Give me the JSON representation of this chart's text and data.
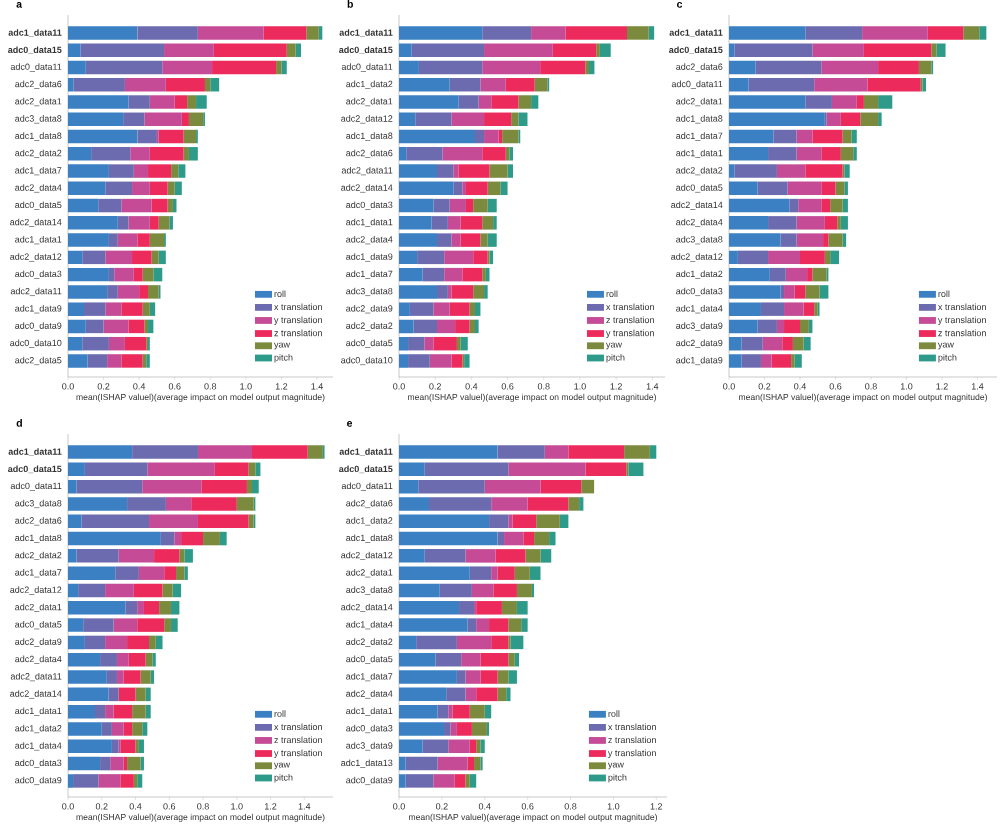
{
  "chart_data": [
    {
      "type": "bar",
      "orientation": "horizontal",
      "stacked": true,
      "title": "a",
      "xlabel": "mean(ISHAP valuel)(average impact on model output magnitude)",
      "legend": "bottom right",
      "xlim": [
        0,
        1.49
      ],
      "xticks": [
        {
          "value": 0,
          "label": "0.0"
        },
        {
          "value": 0.2,
          "label": "0.2"
        },
        {
          "value": 0.4,
          "label": "0.4"
        },
        {
          "value": 0.6,
          "label": "0.6"
        },
        {
          "value": 0.8,
          "label": "0.8"
        },
        {
          "value": 1.0,
          "label": "1.0"
        },
        {
          "value": 1.2,
          "label": "1.2"
        },
        {
          "value": 1.4,
          "label": "1.4"
        }
      ],
      "categories": [
        "**adc1_data11**",
        "**adc0_data15**",
        "adc0_data11",
        "adc2_data6",
        "adc2_data1",
        "adc3_data8",
        "adc1_data8",
        "adc2_data2",
        "adc1_data7",
        "adc2_data4",
        "adc0_data5",
        "adc2_data14",
        "adc1_data1",
        "adc2_data12",
        "adc0_data3",
        "adc2_data11",
        "adc1_data9",
        "adc0_data9",
        "adc0_data10",
        "adc2_data5"
      ],
      "series": [
        {
          "name": "roll",
          "color": "#3a80c3",
          "values": [
            0.39,
            0.07,
            0.1,
            0.03,
            0.34,
            0.31,
            0.39,
            0.13,
            0.23,
            0.21,
            0.17,
            0.28,
            0.23,
            0.08,
            0.23,
            0.22,
            0.09,
            0.1,
            0.08,
            0.11
          ]
        },
        {
          "name": "x translation",
          "color": "#6d6bb0",
          "values": [
            0.34,
            0.47,
            0.43,
            0.29,
            0.12,
            0.12,
            0.11,
            0.22,
            0.14,
            0.15,
            0.13,
            0.06,
            0.05,
            0.13,
            0.03,
            0.06,
            0.12,
            0.1,
            0.15,
            0.11
          ]
        },
        {
          "name": "y translation",
          "color": "#c54b96",
          "values": [
            0.37,
            0.28,
            0.28,
            0.23,
            0.14,
            0.21,
            0.01,
            0.11,
            0.08,
            0.1,
            0.17,
            0.12,
            0.11,
            0.15,
            0.11,
            0.12,
            0.09,
            0.14,
            0.09,
            0.08
          ]
        },
        {
          "name": "z translation",
          "color": "#ec2a5b",
          "values": [
            0.24,
            0.41,
            0.36,
            0.22,
            0.07,
            0.04,
            0.14,
            0.19,
            0.13,
            0.1,
            0.09,
            0.05,
            0.07,
            0.11,
            0.05,
            0.05,
            0.12,
            0.09,
            0.12,
            0.12
          ]
        },
        {
          "name": "yaw",
          "color": "#7b8a3c",
          "values": [
            0.07,
            0.05,
            0.03,
            0.03,
            0.05,
            0.08,
            0.07,
            0.03,
            0.04,
            0.04,
            0.03,
            0.06,
            0.08,
            0.04,
            0.06,
            0.06,
            0.04,
            0.02,
            0.01,
            0.02
          ]
        },
        {
          "name": "pitch",
          "color": "#2e9a8a",
          "values": [
            0.02,
            0.03,
            0.03,
            0.05,
            0.06,
            0.01,
            0.01,
            0.05,
            0.04,
            0.04,
            0.02,
            0.02,
            0.01,
            0.04,
            0.05,
            0.01,
            0.03,
            0.03,
            0.01,
            0.02
          ]
        }
      ]
    },
    {
      "type": "bar",
      "orientation": "horizontal",
      "stacked": true,
      "title": "b",
      "xlabel": "mean(ISHAP valuel)(average impact on model output magnitude)",
      "legend": "bottom right",
      "xlim": [
        0,
        1.47
      ],
      "xticks": [
        {
          "value": 0,
          "label": "0.0"
        },
        {
          "value": 0.2,
          "label": "0.2"
        },
        {
          "value": 0.4,
          "label": "0.4"
        },
        {
          "value": 0.6,
          "label": "0.6"
        },
        {
          "value": 0.8,
          "label": "0.8"
        },
        {
          "value": 1.0,
          "label": "1.0"
        },
        {
          "value": 1.2,
          "label": "1.2"
        },
        {
          "value": 1.4,
          "label": "1.4"
        }
      ],
      "categories": [
        "**adc1_data11**",
        "**adc0_data15**",
        "adc0_data11",
        "adc1_data2",
        "adc2_data1",
        "adc2_data12",
        "adc1_data8",
        "adc2_data6",
        "adc2_data11",
        "adc2_data14",
        "adc0_data3",
        "adc1_data1",
        "adc2_data4",
        "adc1_data9",
        "adc1_data7",
        "adc3_data8",
        "adc2_data9",
        "adc2_data2",
        "adc0_data5",
        "adc0_data10"
      ],
      "series": [
        {
          "name": "roll",
          "color": "#3a80c3",
          "values": [
            0.46,
            0.07,
            0.11,
            0.28,
            0.33,
            0.09,
            0.42,
            0.04,
            0.21,
            0.3,
            0.19,
            0.18,
            0.21,
            0.1,
            0.13,
            0.21,
            0.06,
            0.08,
            0.05,
            0.05
          ]
        },
        {
          "name": "x translation",
          "color": "#6d6bb0",
          "values": [
            0.27,
            0.4,
            0.35,
            0.17,
            0.11,
            0.2,
            0.05,
            0.2,
            0.09,
            0.05,
            0.09,
            0.09,
            0.08,
            0.15,
            0.12,
            0.06,
            0.13,
            0.13,
            0.09,
            0.12
          ]
        },
        {
          "name": "z translation",
          "color": "#c54b96",
          "values": [
            0.19,
            0.38,
            0.32,
            0.14,
            0.07,
            0.18,
            0.08,
            0.22,
            0.03,
            0.02,
            0.09,
            0.07,
            0.05,
            0.16,
            0.1,
            0.02,
            0.09,
            0.1,
            0.05,
            0.12
          ]
        },
        {
          "name": "y translation",
          "color": "#ec2a5b",
          "values": [
            0.34,
            0.24,
            0.25,
            0.16,
            0.15,
            0.15,
            0.02,
            0.13,
            0.17,
            0.12,
            0.04,
            0.12,
            0.11,
            0.08,
            0.11,
            0.12,
            0.11,
            0.08,
            0.13,
            0.06
          ]
        },
        {
          "name": "yaw",
          "color": "#7b8a3c",
          "values": [
            0.12,
            0.02,
            0.02,
            0.07,
            0.07,
            0.04,
            0.09,
            0.02,
            0.1,
            0.07,
            0.08,
            0.06,
            0.04,
            0.01,
            0.02,
            0.06,
            0.03,
            0.03,
            0.02,
            0.01
          ]
        },
        {
          "name": "pitch",
          "color": "#2e9a8a",
          "values": [
            0.03,
            0.06,
            0.03,
            0.01,
            0.04,
            0.05,
            0.01,
            0.02,
            0.03,
            0.04,
            0.05,
            0.02,
            0.05,
            0.02,
            0.02,
            0.02,
            0.03,
            0.02,
            0.04,
            0.03
          ]
        }
      ]
    },
    {
      "type": "bar",
      "orientation": "horizontal",
      "stacked": true,
      "title": "c",
      "xlabel": "mean(ISHAP valuel)(average impact on model output magnitude)",
      "legend": "bottom right",
      "xlim": [
        0,
        1.51
      ],
      "xticks": [
        {
          "value": 0,
          "label": "0.0"
        },
        {
          "value": 0.2,
          "label": "0.2"
        },
        {
          "value": 0.4,
          "label": "0.4"
        },
        {
          "value": 0.6,
          "label": "0.6"
        },
        {
          "value": 0.8,
          "label": "0.8"
        },
        {
          "value": 1.0,
          "label": "1.0"
        },
        {
          "value": 1.2,
          "label": "1.2"
        },
        {
          "value": 1.4,
          "label": "1.4"
        }
      ],
      "categories": [
        "**adc1_data11**",
        "**adc0_data15**",
        "adc2_data6",
        "adc0_data11",
        "adc2_data1",
        "adc1_data8",
        "adc1_data7",
        "adc1_data1",
        "adc2_data2",
        "adc0_data5",
        "adc2_data14",
        "adc2_data4",
        "adc3_data8",
        "adc2_data12",
        "adc1_data2",
        "adc0_data3",
        "adc1_data4",
        "adc3_data9",
        "adc2_data9",
        "adc1_data9"
      ],
      "series": [
        {
          "name": "roll",
          "color": "#3a80c3",
          "values": [
            0.43,
            0.03,
            0.15,
            0.11,
            0.43,
            0.54,
            0.25,
            0.22,
            0.03,
            0.16,
            0.34,
            0.22,
            0.29,
            0.05,
            0.23,
            0.29,
            0.18,
            0.16,
            0.07,
            0.07
          ]
        },
        {
          "name": "x translation",
          "color": "#6d6bb0",
          "values": [
            0.32,
            0.44,
            0.37,
            0.37,
            0.15,
            0.01,
            0.13,
            0.16,
            0.24,
            0.17,
            0.05,
            0.16,
            0.09,
            0.17,
            0.09,
            0.02,
            0.13,
            0.11,
            0.12,
            0.11
          ]
        },
        {
          "name": "y translation",
          "color": "#c54b96",
          "values": [
            0.37,
            0.29,
            0.32,
            0.3,
            0.14,
            0.08,
            0.09,
            0.14,
            0.16,
            0.19,
            0.13,
            0.16,
            0.15,
            0.18,
            0.12,
            0.06,
            0.11,
            0.04,
            0.11,
            0.06
          ]
        },
        {
          "name": "z translation",
          "color": "#ec2a5b",
          "values": [
            0.2,
            0.38,
            0.23,
            0.3,
            0.04,
            0.11,
            0.17,
            0.11,
            0.21,
            0.08,
            0.05,
            0.07,
            0.03,
            0.14,
            0.03,
            0.06,
            0.06,
            0.09,
            0.06,
            0.11
          ]
        },
        {
          "name": "yaw",
          "color": "#7b8a3c",
          "values": [
            0.09,
            0.03,
            0.07,
            0.01,
            0.08,
            0.1,
            0.05,
            0.07,
            0.01,
            0.05,
            0.07,
            0.02,
            0.08,
            0.03,
            0.08,
            0.08,
            0.02,
            0.05,
            0.06,
            0.02
          ]
        },
        {
          "name": "pitch",
          "color": "#2e9a8a",
          "values": [
            0.04,
            0.05,
            0.01,
            0.02,
            0.08,
            0.02,
            0.03,
            0.02,
            0.03,
            0.02,
            0.03,
            0.04,
            0.02,
            0.05,
            0.01,
            0.05,
            0.01,
            0.02,
            0.04,
            0.04
          ]
        }
      ]
    },
    {
      "type": "bar",
      "orientation": "horizontal",
      "stacked": true,
      "title": "d",
      "xlabel": "mean(ISHAP valuel)(average impact on model output magnitude)",
      "legend": "bottom right",
      "xlim": [
        0,
        1.57
      ],
      "xticks": [
        {
          "value": 0,
          "label": "0.0"
        },
        {
          "value": 0.2,
          "label": "0.2"
        },
        {
          "value": 0.4,
          "label": "0.4"
        },
        {
          "value": 0.6,
          "label": "0.6"
        },
        {
          "value": 0.8,
          "label": "0.8"
        },
        {
          "value": 1.0,
          "label": "1.0"
        },
        {
          "value": 1.2,
          "label": "1.2"
        },
        {
          "value": 1.4,
          "label": "1.4"
        }
      ],
      "categories": [
        "**adc1_data11**",
        "**adc0_data15**",
        "adc0_data11",
        "adc3_data8",
        "adc2_data6",
        "adc1_data8",
        "adc2_data2",
        "adc1_data7",
        "adc2_data12",
        "adc2_data1",
        "adc0_data5",
        "adc2_data9",
        "adc2_data4",
        "adc2_data11",
        "adc2_data14",
        "adc1_data1",
        "adc1_data2",
        "adc1_data4",
        "adc0_data3",
        "adc0_data9"
      ],
      "series": [
        {
          "name": "roll",
          "color": "#3a80c3",
          "values": [
            0.38,
            0.1,
            0.05,
            0.35,
            0.08,
            0.55,
            0.05,
            0.28,
            0.06,
            0.34,
            0.09,
            0.1,
            0.19,
            0.23,
            0.24,
            0.16,
            0.2,
            0.26,
            0.19,
            0.03
          ]
        },
        {
          "name": "x translation",
          "color": "#6d6bb0",
          "values": [
            0.39,
            0.37,
            0.39,
            0.23,
            0.4,
            0.08,
            0.25,
            0.14,
            0.16,
            0.07,
            0.18,
            0.12,
            0.1,
            0.06,
            0.06,
            0.06,
            0.06,
            0.04,
            0.06,
            0.15
          ]
        },
        {
          "name": "z translation",
          "color": "#c54b96",
          "values": [
            0.32,
            0.4,
            0.35,
            0.15,
            0.29,
            0.04,
            0.21,
            0.15,
            0.17,
            0.04,
            0.14,
            0.13,
            0.07,
            0.04,
            0.0,
            0.05,
            0.07,
            0.01,
            0.08,
            0.13
          ]
        },
        {
          "name": "y translation",
          "color": "#ec2a5b",
          "values": [
            0.33,
            0.2,
            0.27,
            0.27,
            0.3,
            0.13,
            0.15,
            0.07,
            0.17,
            0.09,
            0.16,
            0.13,
            0.1,
            0.1,
            0.1,
            0.11,
            0.05,
            0.09,
            0.02,
            0.08
          ]
        },
        {
          "name": "yaw",
          "color": "#7b8a3c",
          "values": [
            0.09,
            0.04,
            0.03,
            0.1,
            0.03,
            0.1,
            0.03,
            0.05,
            0.06,
            0.07,
            0.04,
            0.04,
            0.04,
            0.06,
            0.06,
            0.08,
            0.06,
            0.02,
            0.08,
            0.02
          ]
        },
        {
          "name": "pitch",
          "color": "#2e9a8a",
          "values": [
            0.01,
            0.03,
            0.04,
            0.01,
            0.01,
            0.04,
            0.05,
            0.02,
            0.05,
            0.05,
            0.04,
            0.04,
            0.02,
            0.02,
            0.03,
            0.03,
            0.03,
            0.03,
            0.02,
            0.03
          ]
        }
      ]
    },
    {
      "type": "bar",
      "orientation": "horizontal",
      "stacked": true,
      "title": "e",
      "xlabel": "mean(ISHAP valuel)(average impact on model output magnitude)",
      "legend": "bottom right",
      "xlim": [
        0,
        1.25
      ],
      "xticks": [
        {
          "value": 0,
          "label": "0.0"
        },
        {
          "value": 0.2,
          "label": "0.2"
        },
        {
          "value": 0.4,
          "label": "0.4"
        },
        {
          "value": 0.6,
          "label": "0.6"
        },
        {
          "value": 0.8,
          "label": "0.8"
        },
        {
          "value": 1.0,
          "label": "1.0"
        },
        {
          "value": 1.2,
          "label": "1.2"
        }
      ],
      "categories": [
        "**adc1_data11**",
        "**adc0_data15**",
        "adc0_data11",
        "adc2_data6",
        "adc1_data2",
        "adc1_data8",
        "adc2_data12",
        "adc2_data1",
        "adc3_data8",
        "adc2_data14",
        "adc1_data4",
        "adc2_data2",
        "adc0_data5",
        "adc1_data7",
        "adc2_data4",
        "adc1_data1",
        "adc0_data3",
        "adc3_data9",
        "adc1_data13",
        "adc0_data9"
      ],
      "series": [
        {
          "name": "roll",
          "color": "#3a80c3",
          "values": [
            0.46,
            0.12,
            0.09,
            0.14,
            0.42,
            0.46,
            0.12,
            0.33,
            0.19,
            0.28,
            0.32,
            0.08,
            0.17,
            0.27,
            0.22,
            0.18,
            0.21,
            0.11,
            0.03,
            0.03
          ]
        },
        {
          "name": "x translation",
          "color": "#6d6bb0",
          "values": [
            0.22,
            0.39,
            0.31,
            0.29,
            0.09,
            0.03,
            0.19,
            0.1,
            0.15,
            0.07,
            0.04,
            0.19,
            0.12,
            0.04,
            0.09,
            0.05,
            0.03,
            0.12,
            0.15,
            0.13
          ]
        },
        {
          "name": "z translation",
          "color": "#c54b96",
          "values": [
            0.11,
            0.36,
            0.26,
            0.17,
            0.02,
            0.09,
            0.14,
            0.03,
            0.1,
            0.01,
            0.06,
            0.16,
            0.09,
            0.07,
            0.05,
            0.02,
            0.03,
            0.1,
            0.14,
            0.1
          ]
        },
        {
          "name": "y translation",
          "color": "#ec2a5b",
          "values": [
            0.26,
            0.19,
            0.19,
            0.19,
            0.11,
            0.05,
            0.14,
            0.08,
            0.11,
            0.12,
            0.09,
            0.08,
            0.13,
            0.08,
            0.1,
            0.08,
            0.07,
            0.03,
            0.03,
            0.05
          ]
        },
        {
          "name": "yaw",
          "color": "#7b8a3c",
          "values": [
            0.12,
            0.01,
            0.06,
            0.05,
            0.11,
            0.07,
            0.07,
            0.07,
            0.07,
            0.07,
            0.06,
            0.01,
            0.03,
            0.05,
            0.04,
            0.07,
            0.07,
            0.02,
            0.03,
            0.02
          ]
        },
        {
          "name": "pitch",
          "color": "#2e9a8a",
          "values": [
            0.03,
            0.07,
            0.0,
            0.02,
            0.04,
            0.03,
            0.05,
            0.05,
            0.01,
            0.05,
            0.03,
            0.06,
            0.02,
            0.04,
            0.02,
            0.03,
            0.01,
            0.02,
            0.01,
            0.03
          ]
        }
      ]
    }
  ]
}
